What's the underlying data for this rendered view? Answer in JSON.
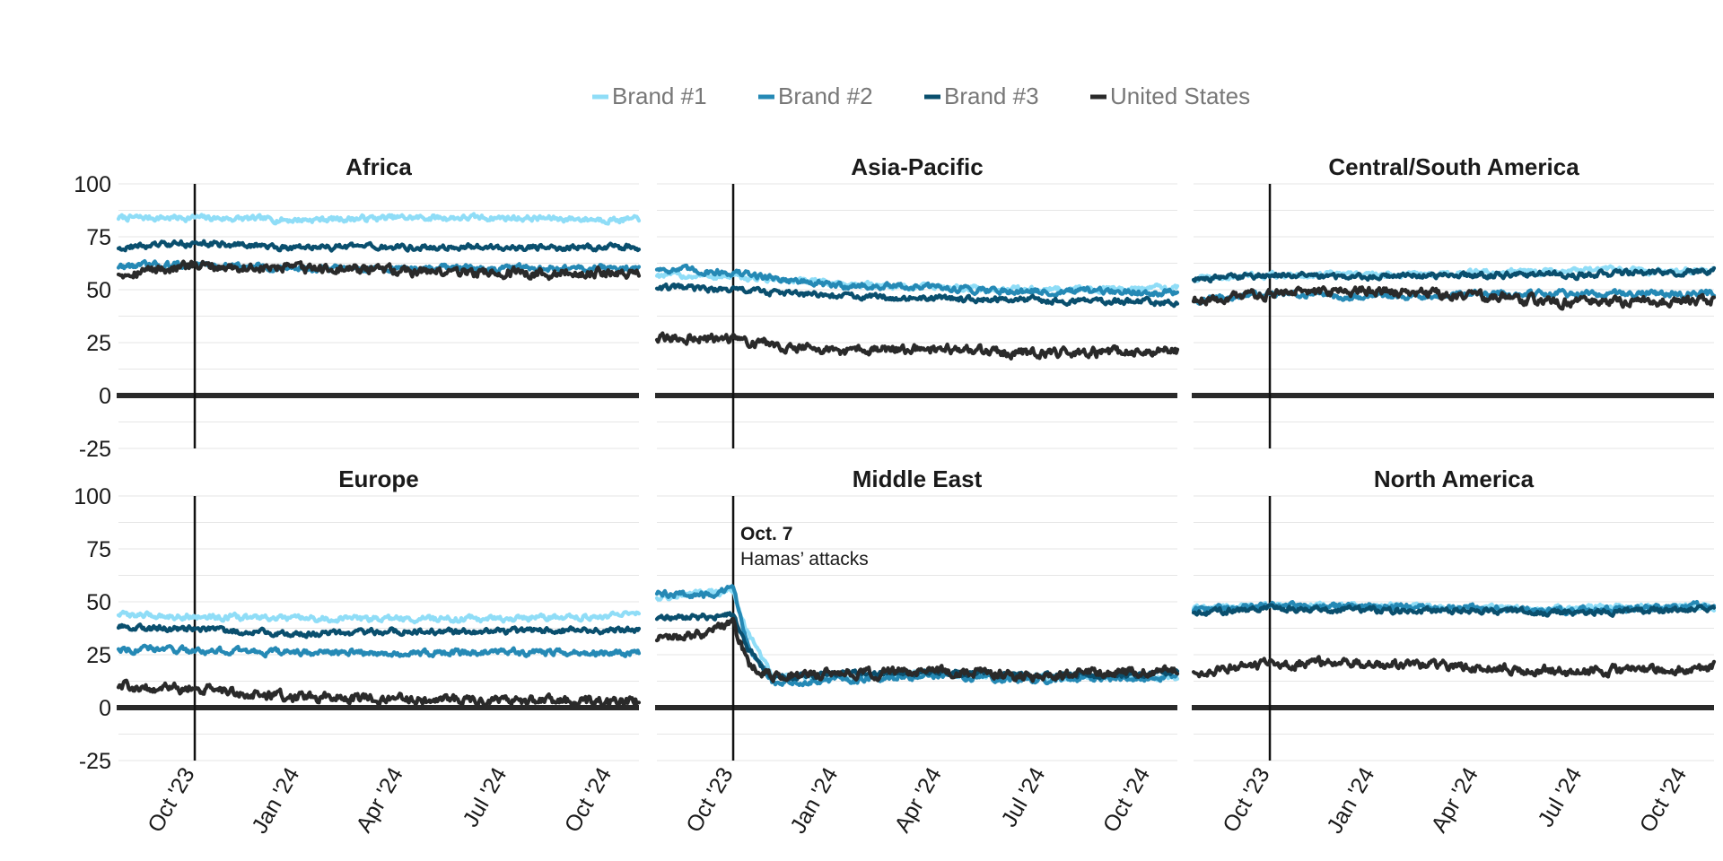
{
  "chart_data": {
    "type": "line",
    "layout": "small-multiples-3x2",
    "legend_position": "top-center",
    "grid": true,
    "ylim": [
      -25,
      100
    ],
    "yticks": [
      100,
      75,
      50,
      25,
      0,
      -25
    ],
    "ytick_labels": [
      "100",
      "75",
      "50",
      "25",
      "0",
      "-25"
    ],
    "xlim": [
      "2023-08-01",
      "2024-10-31"
    ],
    "xticks": [
      "2023-10-01",
      "2024-01-01",
      "2024-04-01",
      "2024-07-01",
      "2024-10-01"
    ],
    "xtick_labels": [
      "Oct '23",
      "Jan '24",
      "Apr '24",
      "Jul '24",
      "Oct '24"
    ],
    "event_line": "2023-10-07",
    "colors": {
      "Brand #1": "#8fddf7",
      "Brand #2": "#2589b5",
      "Brand #3": "#0a4f6e",
      "United States": "#2a2a2a",
      "zero_line": "#2a2a2a",
      "grid": "#e6e6e6"
    },
    "legend": [
      "Brand #1",
      "Brand #2",
      "Brand #3",
      "United States"
    ],
    "annotation": {
      "panel": "Middle East",
      "x": "2023-10-07",
      "title": "Oct. 7",
      "text": "Hamas’ attacks"
    },
    "panels": [
      {
        "title": "Africa",
        "series": [
          {
            "name": "Brand #1",
            "x": [
              "2023-08-01",
              "2023-10-07",
              "2024-01-01",
              "2024-04-01",
              "2024-07-01",
              "2024-10-31"
            ],
            "values": [
              84,
              84,
              83,
              84,
              84,
              83
            ]
          },
          {
            "name": "Brand #2",
            "x": [
              "2023-08-01",
              "2023-10-07",
              "2024-01-01",
              "2024-04-01",
              "2024-07-01",
              "2024-10-31"
            ],
            "values": [
              61,
              62,
              60,
              60,
              60,
              60
            ]
          },
          {
            "name": "Brand #3",
            "x": [
              "2023-08-01",
              "2023-10-07",
              "2024-01-01",
              "2024-04-01",
              "2024-07-01",
              "2024-10-31"
            ],
            "values": [
              70,
              72,
              70,
              70,
              70,
              70
            ]
          },
          {
            "name": "United States",
            "x": [
              "2023-08-01",
              "2023-10-07",
              "2024-01-01",
              "2024-04-01",
              "2024-07-01",
              "2024-10-31"
            ],
            "values": [
              58,
              61,
              60,
              59,
              58,
              58
            ]
          }
        ]
      },
      {
        "title": "Asia-Pacific",
        "series": [
          {
            "name": "Brand #1",
            "x": [
              "2023-08-01",
              "2023-10-07",
              "2024-01-01",
              "2024-04-01",
              "2024-07-01",
              "2024-10-31"
            ],
            "values": [
              57,
              56,
              53,
              51,
              50,
              51
            ]
          },
          {
            "name": "Brand #2",
            "x": [
              "2023-08-01",
              "2023-10-07",
              "2024-01-01",
              "2024-04-01",
              "2024-07-01",
              "2024-10-31"
            ],
            "values": [
              60,
              58,
              52,
              51,
              49,
              49
            ]
          },
          {
            "name": "Brand #3",
            "x": [
              "2023-08-01",
              "2023-10-07",
              "2024-01-01",
              "2024-04-01",
              "2024-07-01",
              "2024-10-31"
            ],
            "values": [
              51,
              50,
              47,
              46,
              45,
              44
            ]
          },
          {
            "name": "United States",
            "x": [
              "2023-08-01",
              "2023-10-07",
              "2024-01-01",
              "2024-04-01",
              "2024-07-01",
              "2024-10-31"
            ],
            "values": [
              27,
              27,
              21,
              22,
              20,
              21
            ]
          }
        ]
      },
      {
        "title": "Central/South America",
        "series": [
          {
            "name": "Brand #1",
            "x": [
              "2023-08-01",
              "2023-10-07",
              "2024-01-01",
              "2024-04-01",
              "2024-07-01",
              "2024-10-31"
            ],
            "values": [
              55,
              57,
              57,
              58,
              59,
              59
            ]
          },
          {
            "name": "Brand #2",
            "x": [
              "2023-08-01",
              "2023-10-07",
              "2024-01-01",
              "2024-04-01",
              "2024-07-01",
              "2024-10-31"
            ],
            "values": [
              45,
              48,
              47,
              48,
              48,
              48
            ]
          },
          {
            "name": "Brand #3",
            "x": [
              "2023-08-01",
              "2023-10-07",
              "2024-01-01",
              "2024-04-01",
              "2024-07-01",
              "2024-10-31"
            ],
            "values": [
              55,
              57,
              56,
              57,
              57,
              59
            ]
          },
          {
            "name": "United States",
            "x": [
              "2023-08-01",
              "2023-10-07",
              "2024-01-01",
              "2024-04-01",
              "2024-07-01",
              "2024-10-31"
            ],
            "values": [
              45,
              48,
              50,
              47,
              44,
              45
            ]
          }
        ]
      },
      {
        "title": "Europe",
        "series": [
          {
            "name": "Brand #1",
            "x": [
              "2023-08-01",
              "2023-10-07",
              "2024-01-01",
              "2024-04-01",
              "2024-07-01",
              "2024-10-31"
            ],
            "values": [
              44,
              43,
              42,
              42,
              42,
              44
            ]
          },
          {
            "name": "Brand #2",
            "x": [
              "2023-08-01",
              "2023-10-07",
              "2024-01-01",
              "2024-04-01",
              "2024-07-01",
              "2024-10-31"
            ],
            "values": [
              28,
              27,
              26,
              26,
              26,
              26
            ]
          },
          {
            "name": "Brand #3",
            "x": [
              "2023-08-01",
              "2023-10-07",
              "2024-01-01",
              "2024-04-01",
              "2024-07-01",
              "2024-10-31"
            ],
            "values": [
              38,
              37,
              35,
              36,
              36,
              37
            ]
          },
          {
            "name": "United States",
            "x": [
              "2023-08-01",
              "2023-10-07",
              "2024-01-01",
              "2024-04-01",
              "2024-07-01",
              "2024-10-31"
            ],
            "values": [
              10,
              9,
              5,
              4,
              3,
              3
            ]
          }
        ]
      },
      {
        "title": "Middle East",
        "series": [
          {
            "name": "Brand #1",
            "x": [
              "2023-08-01",
              "2023-09-15",
              "2023-10-07",
              "2023-10-20",
              "2023-11-10",
              "2024-01-01",
              "2024-04-01",
              "2024-07-01",
              "2024-10-31"
            ],
            "values": [
              52,
              54,
              55,
              35,
              15,
              14,
              16,
              14,
              15
            ]
          },
          {
            "name": "Brand #2",
            "x": [
              "2023-08-01",
              "2023-09-15",
              "2023-10-07",
              "2023-10-20",
              "2023-11-10",
              "2024-01-01",
              "2024-04-01",
              "2024-07-01",
              "2024-10-31"
            ],
            "values": [
              54,
              53,
              56,
              30,
              12,
              13,
              15,
              13,
              15
            ]
          },
          {
            "name": "Brand #3",
            "x": [
              "2023-08-01",
              "2023-09-15",
              "2023-10-07",
              "2023-10-20",
              "2023-11-10",
              "2024-01-01",
              "2024-04-01",
              "2024-07-01",
              "2024-10-31"
            ],
            "values": [
              42,
              43,
              44,
              28,
              14,
              16,
              17,
              15,
              16
            ]
          },
          {
            "name": "United States",
            "x": [
              "2023-08-01",
              "2023-09-15",
              "2023-10-07",
              "2023-10-20",
              "2023-11-10",
              "2024-01-01",
              "2024-04-01",
              "2024-07-01",
              "2024-10-31"
            ],
            "values": [
              32,
              35,
              40,
              20,
              15,
              16,
              17,
              15,
              18
            ]
          }
        ]
      },
      {
        "title": "North America",
        "series": [
          {
            "name": "Brand #1",
            "x": [
              "2023-08-01",
              "2023-10-07",
              "2024-01-01",
              "2024-04-01",
              "2024-07-01",
              "2024-10-31"
            ],
            "values": [
              47,
              48,
              48,
              47,
              47,
              48
            ]
          },
          {
            "name": "Brand #2",
            "x": [
              "2023-08-01",
              "2023-10-07",
              "2024-01-01",
              "2024-04-01",
              "2024-07-01",
              "2024-10-31"
            ],
            "values": [
              46,
              48,
              48,
              47,
              46,
              48
            ]
          },
          {
            "name": "Brand #3",
            "x": [
              "2023-08-01",
              "2023-10-07",
              "2024-01-01",
              "2024-04-01",
              "2024-07-01",
              "2024-10-31"
            ],
            "values": [
              45,
              47,
              46,
              46,
              45,
              47
            ]
          },
          {
            "name": "United States",
            "x": [
              "2023-08-01",
              "2023-10-07",
              "2024-01-01",
              "2024-04-01",
              "2024-07-01",
              "2024-10-31"
            ],
            "values": [
              17,
              21,
              21,
              19,
              17,
              19
            ]
          }
        ]
      }
    ]
  }
}
